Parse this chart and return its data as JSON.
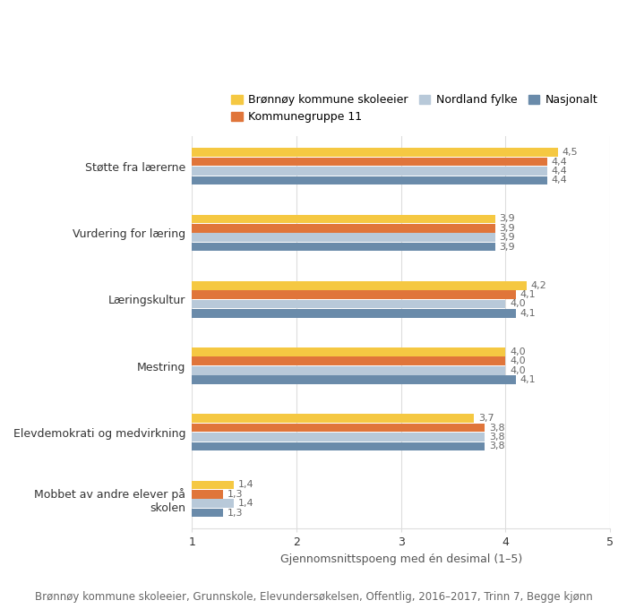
{
  "categories": [
    "Støtte fra lærerne",
    "Vurdering for læring",
    "Læringskultur",
    "Mestring",
    "Elevdemokrati og medvirkning",
    "Mobbet av andre elever på\nskolen"
  ],
  "series": {
    "Brønnøy kommune skoleeier": [
      4.5,
      3.9,
      4.2,
      4.0,
      3.7,
      1.4
    ],
    "Kommunegruppe 11": [
      4.4,
      3.9,
      4.1,
      4.0,
      3.8,
      1.3
    ],
    "Nordland fylke": [
      4.4,
      3.9,
      4.0,
      4.0,
      3.8,
      1.4
    ],
    "Nasjonalt": [
      4.4,
      3.9,
      4.1,
      4.1,
      3.8,
      1.3
    ]
  },
  "colors": {
    "Brønnøy kommune skoleeier": "#F5C842",
    "Kommunegruppe 11": "#E0753A",
    "Nordland fylke": "#B8C9D9",
    "Nasjonalt": "#6A8BAA"
  },
  "xlim": [
    1,
    5
  ],
  "xticks": [
    1,
    2,
    3,
    4,
    5
  ],
  "xlabel": "Gjennomsnittspoeng med én desimal (1–5)",
  "footnote": "Brønnøy kommune skoleeier, Grunnskole, Elevundersøkelsen, Offentlig, 2016–2017, Trinn 7, Begge kjønn",
  "bar_height": 0.13,
  "background_color": "#FFFFFF",
  "grid_color": "#DDDDDD",
  "label_fontsize": 8,
  "axis_fontsize": 9,
  "legend_fontsize": 9,
  "footnote_fontsize": 8.5
}
